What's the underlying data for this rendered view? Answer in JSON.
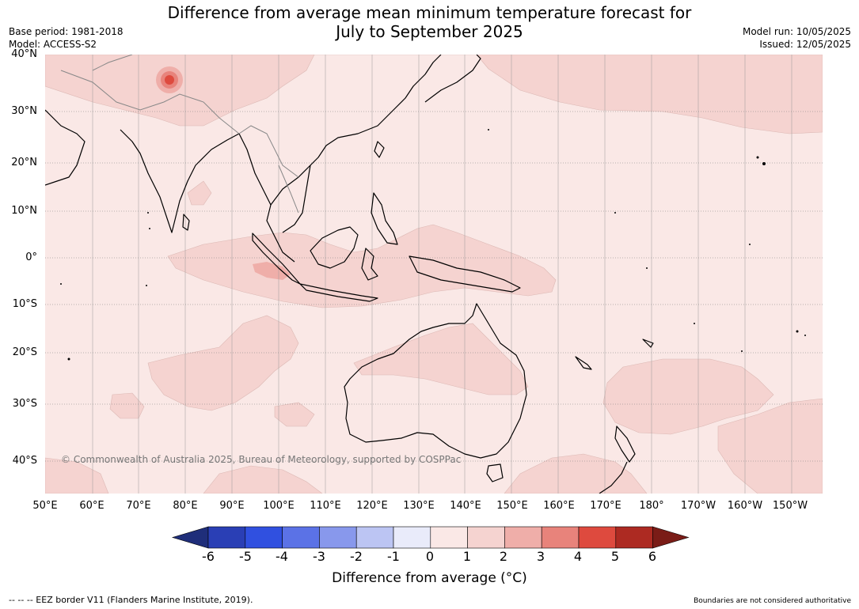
{
  "title_line1": "Difference from average mean minimum temperature forecast for",
  "title_line2": "July to September 2025",
  "base_period": "Base period: 1981-2018",
  "model": "Model: ACCESS-S2",
  "model_run": "Model run: 10/05/2025",
  "issued": "Issued: 12/05/2025",
  "copyright": "© Commonwealth of Australia 2025, Bureau of Meteorology, supported by COSPPac",
  "lat_labels": [
    "40°N",
    "30°N",
    "20°N",
    "10°N",
    "0°",
    "10°S",
    "20°S",
    "30°S",
    "40°S"
  ],
  "lon_labels": [
    "50°E",
    "60°E",
    "70°E",
    "80°E",
    "90°E",
    "100°E",
    "110°E",
    "120°E",
    "130°E",
    "140°E",
    "150°E",
    "160°E",
    "170°E",
    "180°",
    "170°W",
    "160°W",
    "150°W"
  ],
  "colorbar": {
    "ticks": [
      "-6",
      "-5",
      "-4",
      "-3",
      "-2",
      "-1",
      "0",
      "1",
      "2",
      "3",
      "4",
      "5",
      "6"
    ],
    "label": "Difference from average (°C)",
    "colors": [
      "#1f2e7a",
      "#2a3fb5",
      "#3050e0",
      "#5b72e6",
      "#8898ec",
      "#bcc5f3",
      "#e9ebfa",
      "#fae8e6",
      "#f5d3d0",
      "#efaea9",
      "#e8837b",
      "#de4a3e",
      "#ad2a22",
      "#7a1c17"
    ]
  },
  "footer_left": "--  --  -- EEZ border V11 (Flanders Marine Institute, 2019).",
  "footer_right": "Boundaries are not considered authoritative",
  "colors": {
    "anomaly_0_1": "#fae8e6",
    "anomaly_1_2": "#f5d3d0",
    "anomaly_2_3": "#efaea9",
    "anomaly_3_4": "#e8837b",
    "anomaly_4_5": "#de4a3e"
  }
}
